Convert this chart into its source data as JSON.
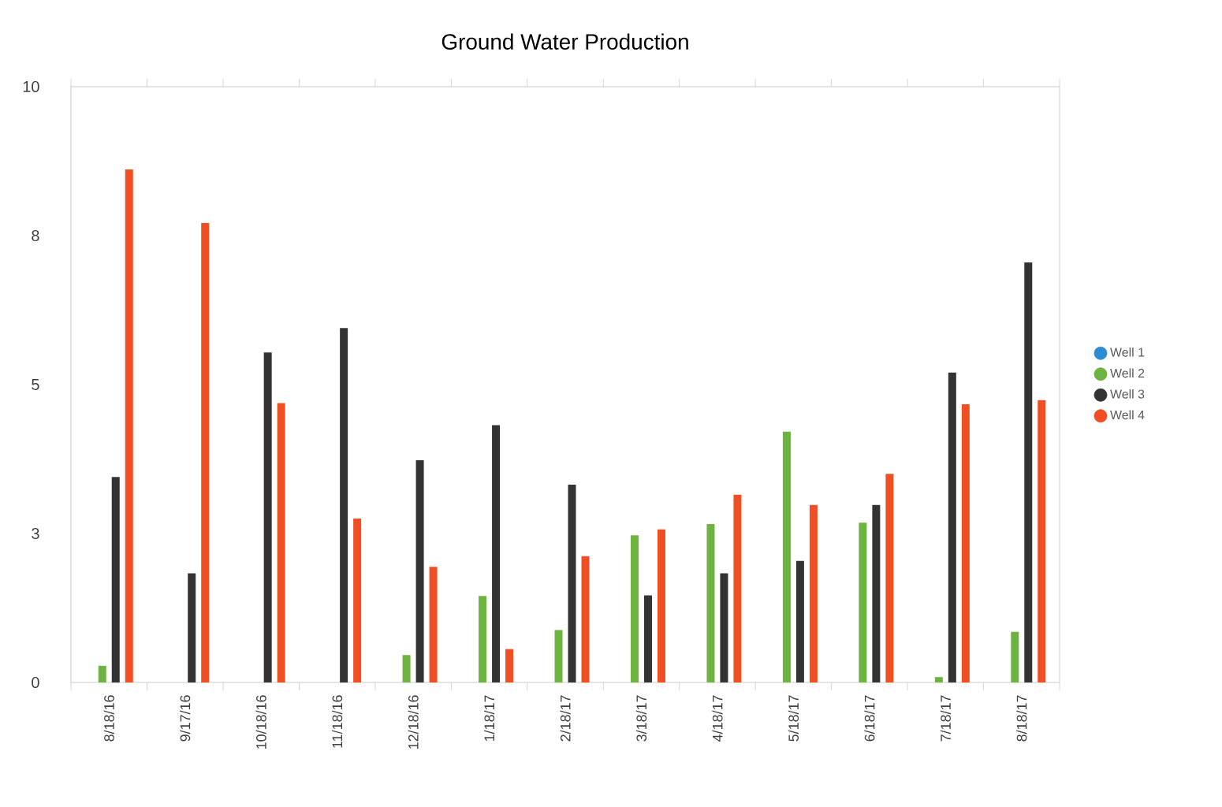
{
  "chart_data": {
    "type": "bar",
    "title": "Ground Water Production",
    "categories": [
      "8/18/16",
      "9/17/16",
      "10/18/16",
      "11/18/16",
      "12/18/16",
      "1/18/17",
      "2/18/17",
      "3/18/17",
      "4/18/17",
      "5/18/17",
      "6/18/17",
      "7/18/17",
      "8/18/17"
    ],
    "series": [
      {
        "name": "Well 1",
        "color": "#2b8ccf",
        "values": [
          null,
          null,
          null,
          null,
          null,
          null,
          null,
          null,
          null,
          null,
          null,
          null,
          null
        ]
      },
      {
        "name": "Well 2",
        "color": "#6db33f",
        "values": [
          0.28,
          null,
          null,
          null,
          0.46,
          1.45,
          0.88,
          2.47,
          2.66,
          4.21,
          2.68,
          0.09,
          0.85
        ]
      },
      {
        "name": "Well 3",
        "color": "#333333",
        "values": [
          3.45,
          1.83,
          5.54,
          5.95,
          3.73,
          4.32,
          3.32,
          1.46,
          1.83,
          2.04,
          2.98,
          5.2,
          7.05
        ]
      },
      {
        "name": "Well 4",
        "color": "#f04e23",
        "values": [
          8.61,
          7.71,
          4.69,
          2.75,
          1.94,
          0.56,
          2.12,
          2.57,
          3.15,
          2.98,
          3.5,
          4.67,
          4.74
        ]
      }
    ],
    "ylim": [
      0,
      10
    ],
    "yticks": [
      0,
      {
        "value": 2.5,
        "label": "3"
      },
      5,
      {
        "value": 7.5,
        "label": "8"
      },
      10
    ],
    "legend": "right",
    "marker": "circle",
    "grid": false
  }
}
